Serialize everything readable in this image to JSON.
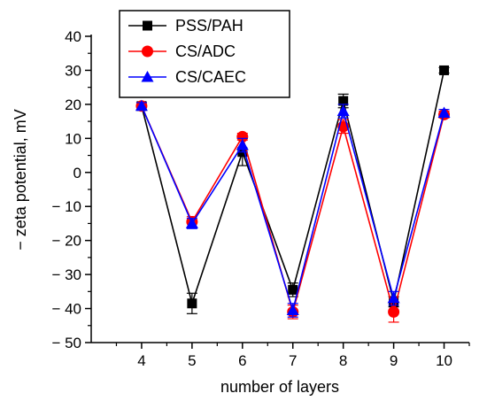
{
  "chart_data": {
    "type": "line",
    "xlabel": "number of layers",
    "ylabel": "− zeta potential, mV",
    "x": [
      4,
      5,
      6,
      7,
      8,
      9,
      10
    ],
    "xlim": [
      3,
      10.5
    ],
    "ylim": [
      -50,
      40
    ],
    "xticks": [
      4,
      5,
      6,
      7,
      8,
      9,
      10
    ],
    "yticks": [
      -50,
      -40,
      -30,
      -20,
      -10,
      0,
      10,
      20,
      30,
      40
    ],
    "xtick_labels": [
      "4",
      "5",
      "6",
      "7",
      "8",
      "9",
      "10"
    ],
    "ytick_labels": [
      "− 50",
      "− 40",
      "− 30",
      "− 20",
      "− 10",
      "0",
      "10",
      "20",
      "30",
      "40"
    ],
    "grid": false,
    "legend_position": "top-left",
    "series": [
      {
        "name": "PSS/PAH",
        "color": "#000000",
        "marker": "square",
        "values": [
          19.5,
          -38.5,
          6,
          -34.5,
          21,
          -38,
          30
        ],
        "errors": [
          1,
          3,
          4,
          2,
          2,
          1.5,
          0.8
        ]
      },
      {
        "name": "CS/ADC",
        "color": "#ff0000",
        "marker": "circle",
        "values": [
          19.5,
          -14.5,
          10.5,
          -41,
          13.5,
          -41,
          17
        ],
        "errors": [
          1,
          1.5,
          1,
          2,
          2,
          3,
          1
        ]
      },
      {
        "name": "CS/CAEC",
        "color": "#0000ff",
        "marker": "triangle",
        "values": [
          19.5,
          -15,
          8,
          -40.5,
          18,
          -37,
          17.5
        ],
        "errors": [
          1,
          1.5,
          2,
          2,
          2,
          2,
          1
        ]
      }
    ]
  }
}
